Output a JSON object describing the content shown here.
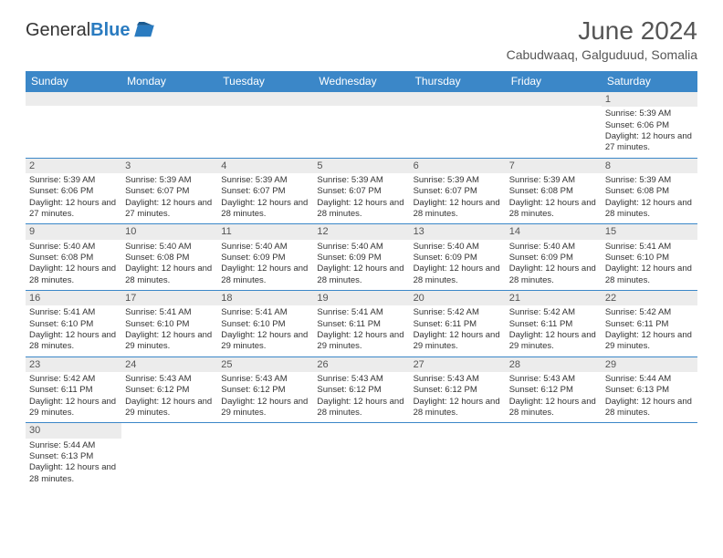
{
  "logo": {
    "text_part1": "General",
    "text_part2": "Blue",
    "icon_color": "#2a7bc0"
  },
  "title": "June 2024",
  "location": "Cabudwaaq, Galguduud, Somalia",
  "colors": {
    "header_bg": "#3b87c8",
    "header_text": "#ffffff",
    "daynum_bg": "#ececec",
    "border": "#3b87c8",
    "body_text": "#333333"
  },
  "day_headers": [
    "Sunday",
    "Monday",
    "Tuesday",
    "Wednesday",
    "Thursday",
    "Friday",
    "Saturday"
  ],
  "weeks": [
    [
      null,
      null,
      null,
      null,
      null,
      null,
      {
        "n": "1",
        "sr": "Sunrise: 5:39 AM",
        "ss": "Sunset: 6:06 PM",
        "dl": "Daylight: 12 hours and 27 minutes."
      }
    ],
    [
      {
        "n": "2",
        "sr": "Sunrise: 5:39 AM",
        "ss": "Sunset: 6:06 PM",
        "dl": "Daylight: 12 hours and 27 minutes."
      },
      {
        "n": "3",
        "sr": "Sunrise: 5:39 AM",
        "ss": "Sunset: 6:07 PM",
        "dl": "Daylight: 12 hours and 27 minutes."
      },
      {
        "n": "4",
        "sr": "Sunrise: 5:39 AM",
        "ss": "Sunset: 6:07 PM",
        "dl": "Daylight: 12 hours and 28 minutes."
      },
      {
        "n": "5",
        "sr": "Sunrise: 5:39 AM",
        "ss": "Sunset: 6:07 PM",
        "dl": "Daylight: 12 hours and 28 minutes."
      },
      {
        "n": "6",
        "sr": "Sunrise: 5:39 AM",
        "ss": "Sunset: 6:07 PM",
        "dl": "Daylight: 12 hours and 28 minutes."
      },
      {
        "n": "7",
        "sr": "Sunrise: 5:39 AM",
        "ss": "Sunset: 6:08 PM",
        "dl": "Daylight: 12 hours and 28 minutes."
      },
      {
        "n": "8",
        "sr": "Sunrise: 5:39 AM",
        "ss": "Sunset: 6:08 PM",
        "dl": "Daylight: 12 hours and 28 minutes."
      }
    ],
    [
      {
        "n": "9",
        "sr": "Sunrise: 5:40 AM",
        "ss": "Sunset: 6:08 PM",
        "dl": "Daylight: 12 hours and 28 minutes."
      },
      {
        "n": "10",
        "sr": "Sunrise: 5:40 AM",
        "ss": "Sunset: 6:08 PM",
        "dl": "Daylight: 12 hours and 28 minutes."
      },
      {
        "n": "11",
        "sr": "Sunrise: 5:40 AM",
        "ss": "Sunset: 6:09 PM",
        "dl": "Daylight: 12 hours and 28 minutes."
      },
      {
        "n": "12",
        "sr": "Sunrise: 5:40 AM",
        "ss": "Sunset: 6:09 PM",
        "dl": "Daylight: 12 hours and 28 minutes."
      },
      {
        "n": "13",
        "sr": "Sunrise: 5:40 AM",
        "ss": "Sunset: 6:09 PM",
        "dl": "Daylight: 12 hours and 28 minutes."
      },
      {
        "n": "14",
        "sr": "Sunrise: 5:40 AM",
        "ss": "Sunset: 6:09 PM",
        "dl": "Daylight: 12 hours and 28 minutes."
      },
      {
        "n": "15",
        "sr": "Sunrise: 5:41 AM",
        "ss": "Sunset: 6:10 PM",
        "dl": "Daylight: 12 hours and 28 minutes."
      }
    ],
    [
      {
        "n": "16",
        "sr": "Sunrise: 5:41 AM",
        "ss": "Sunset: 6:10 PM",
        "dl": "Daylight: 12 hours and 28 minutes."
      },
      {
        "n": "17",
        "sr": "Sunrise: 5:41 AM",
        "ss": "Sunset: 6:10 PM",
        "dl": "Daylight: 12 hours and 29 minutes."
      },
      {
        "n": "18",
        "sr": "Sunrise: 5:41 AM",
        "ss": "Sunset: 6:10 PM",
        "dl": "Daylight: 12 hours and 29 minutes."
      },
      {
        "n": "19",
        "sr": "Sunrise: 5:41 AM",
        "ss": "Sunset: 6:11 PM",
        "dl": "Daylight: 12 hours and 29 minutes."
      },
      {
        "n": "20",
        "sr": "Sunrise: 5:42 AM",
        "ss": "Sunset: 6:11 PM",
        "dl": "Daylight: 12 hours and 29 minutes."
      },
      {
        "n": "21",
        "sr": "Sunrise: 5:42 AM",
        "ss": "Sunset: 6:11 PM",
        "dl": "Daylight: 12 hours and 29 minutes."
      },
      {
        "n": "22",
        "sr": "Sunrise: 5:42 AM",
        "ss": "Sunset: 6:11 PM",
        "dl": "Daylight: 12 hours and 29 minutes."
      }
    ],
    [
      {
        "n": "23",
        "sr": "Sunrise: 5:42 AM",
        "ss": "Sunset: 6:11 PM",
        "dl": "Daylight: 12 hours and 29 minutes."
      },
      {
        "n": "24",
        "sr": "Sunrise: 5:43 AM",
        "ss": "Sunset: 6:12 PM",
        "dl": "Daylight: 12 hours and 29 minutes."
      },
      {
        "n": "25",
        "sr": "Sunrise: 5:43 AM",
        "ss": "Sunset: 6:12 PM",
        "dl": "Daylight: 12 hours and 29 minutes."
      },
      {
        "n": "26",
        "sr": "Sunrise: 5:43 AM",
        "ss": "Sunset: 6:12 PM",
        "dl": "Daylight: 12 hours and 28 minutes."
      },
      {
        "n": "27",
        "sr": "Sunrise: 5:43 AM",
        "ss": "Sunset: 6:12 PM",
        "dl": "Daylight: 12 hours and 28 minutes."
      },
      {
        "n": "28",
        "sr": "Sunrise: 5:43 AM",
        "ss": "Sunset: 6:12 PM",
        "dl": "Daylight: 12 hours and 28 minutes."
      },
      {
        "n": "29",
        "sr": "Sunrise: 5:44 AM",
        "ss": "Sunset: 6:13 PM",
        "dl": "Daylight: 12 hours and 28 minutes."
      }
    ],
    [
      {
        "n": "30",
        "sr": "Sunrise: 5:44 AM",
        "ss": "Sunset: 6:13 PM",
        "dl": "Daylight: 12 hours and 28 minutes."
      },
      null,
      null,
      null,
      null,
      null,
      null
    ]
  ]
}
